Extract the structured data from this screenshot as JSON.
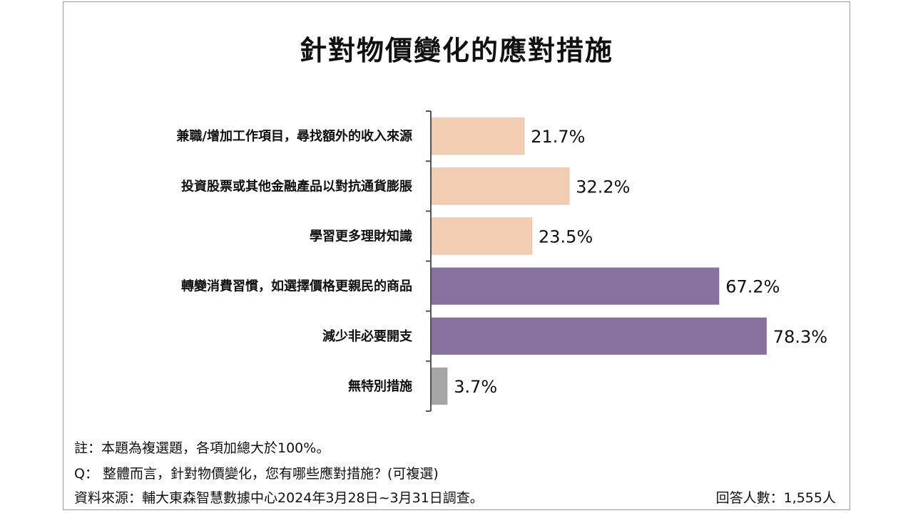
{
  "title": "針對物價變化的應對措施",
  "chart_data": {
    "type": "bar",
    "orientation": "horizontal",
    "title": "針對物價變化的應對措施",
    "categories": [
      "兼職/增加工作項目，尋找額外的收入來源",
      "投資股票或其他金融產品以對抗通貨膨脹",
      "學習更多理財知識",
      "轉變消費習慣，如選擇價格更親民的商品",
      "減少非必要開支",
      "無特別措施"
    ],
    "values": [
      21.7,
      32.2,
      23.5,
      67.2,
      78.3,
      3.7
    ],
    "value_labels": [
      "21.7%",
      "32.2%",
      "23.5%",
      "67.2%",
      "78.3%",
      "3.7%"
    ],
    "colors": [
      "#f2cdb2",
      "#f2cdb2",
      "#f2cdb2",
      "#86719f",
      "#86719f",
      "#a6a6a6"
    ],
    "xlim": [
      0,
      100
    ],
    "grid": false,
    "legend": "none"
  },
  "notes": {
    "note": "註：本題為複選題，各項加總大於100%。",
    "question": "Q：  整體而言，針對物價變化，您有哪些應對措施？(可複選)",
    "source": "資料來源：輔大東森智慧數據中心2024年3月28日~3月31日調查。",
    "respondents": "回答人數：1,555人"
  }
}
